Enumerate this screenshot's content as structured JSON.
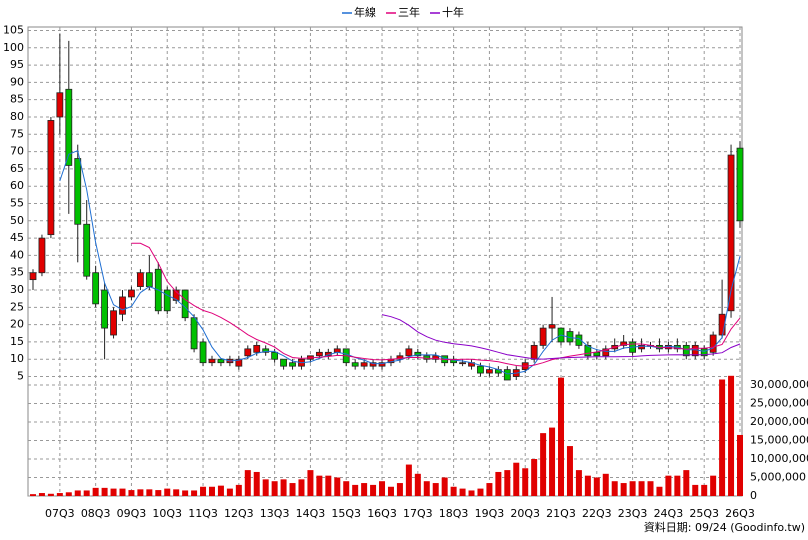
{
  "chart_data": {
    "type": "candlestick",
    "source": "資料日期: 09/24  (Goodinfo.tw)",
    "categories": [
      null,
      null,
      null,
      "07Q3",
      null,
      null,
      null,
      "08Q3",
      null,
      null,
      null,
      "09Q3",
      null,
      null,
      null,
      "10Q3",
      null,
      null,
      null,
      "11Q3",
      null,
      null,
      null,
      "12Q3",
      null,
      null,
      null,
      "13Q3",
      null,
      null,
      null,
      "14Q3",
      null,
      null,
      null,
      "15Q3",
      null,
      null,
      null,
      "16Q3",
      null,
      null,
      null,
      "17Q3",
      null,
      null,
      null,
      "18Q3",
      null,
      null,
      null,
      "19Q3",
      null,
      null,
      null,
      "20Q3",
      null,
      null,
      null,
      "21Q3",
      null,
      null,
      null,
      "22Q3",
      null,
      null,
      null,
      "23Q3",
      null,
      null,
      null,
      "24Q3",
      null,
      null,
      null,
      "25Q3",
      null,
      null,
      null,
      "26Q3"
    ],
    "open": [
      33,
      35,
      46,
      80,
      88,
      68,
      49,
      35,
      30,
      17,
      23,
      28,
      31,
      35,
      36,
      30,
      27,
      30,
      22,
      15,
      9,
      10,
      9,
      8,
      11,
      12,
      13,
      12,
      10,
      9,
      8,
      10,
      11,
      11,
      12,
      13,
      9,
      8,
      8,
      8,
      9,
      10,
      11,
      12,
      11,
      10,
      11,
      10,
      9,
      8,
      8,
      6,
      7,
      7,
      5,
      7,
      10,
      14,
      19,
      19,
      18,
      17,
      14,
      12,
      11,
      13,
      14,
      15,
      13,
      14,
      14,
      13,
      14,
      14,
      11,
      13,
      12,
      17,
      24,
      71
    ],
    "high": [
      36,
      46,
      80,
      104,
      102,
      72,
      56,
      37,
      32,
      25,
      30,
      31,
      36,
      40,
      38,
      31,
      31,
      30,
      23,
      16,
      11,
      10,
      11,
      11,
      14,
      15,
      14,
      13,
      10,
      10,
      11,
      11,
      13,
      13,
      14,
      13,
      10,
      10,
      10,
      10,
      11,
      12,
      14,
      13,
      12,
      12,
      11,
      11,
      10,
      10,
      9,
      8,
      8,
      8,
      8,
      10,
      15,
      20,
      28,
      19,
      19,
      18,
      15,
      13,
      14,
      16,
      17,
      16,
      16,
      15,
      16,
      15,
      16,
      15,
      15,
      14,
      18,
      33,
      72,
      73
    ],
    "low": [
      30,
      34,
      45,
      75,
      52,
      38,
      33,
      25,
      10,
      16,
      21,
      27,
      30,
      30,
      23,
      23,
      26,
      21,
      12,
      8,
      8,
      8,
      8,
      7,
      10,
      11,
      11,
      9,
      7,
      7,
      7,
      9,
      10,
      10,
      11,
      8,
      7,
      7,
      7,
      7,
      8,
      9,
      10,
      10,
      9,
      9,
      8,
      8,
      8,
      7,
      5,
      5,
      5,
      4,
      4,
      6,
      9,
      13,
      15,
      14,
      14,
      13,
      10,
      10,
      10,
      12,
      13,
      11,
      12,
      13,
      12,
      12,
      12,
      10,
      10,
      10,
      11,
      16,
      22,
      48
    ],
    "close": [
      35,
      45,
      79,
      87,
      66,
      49,
      34,
      26,
      19,
      24,
      28,
      30,
      35,
      31,
      24,
      24,
      30,
      22,
      13,
      9,
      10,
      9,
      10,
      10,
      13,
      14,
      12,
      10,
      8,
      8,
      10,
      11,
      12,
      12,
      13,
      9,
      8,
      9,
      9,
      9,
      10,
      11,
      13,
      11,
      10,
      11,
      9,
      9,
      9,
      9,
      6,
      7,
      6,
      4,
      7,
      9,
      14,
      19,
      20,
      15,
      15,
      14,
      11,
      11,
      13,
      14,
      15,
      12,
      14,
      14,
      13,
      14,
      13,
      11,
      14,
      11,
      17,
      23,
      69,
      50
    ],
    "up_color": "#e00000",
    "down_color": "#00c000",
    "series": [
      {
        "name": "年線",
        "color": "#1e6ed2",
        "values": [
          null,
          null,
          null,
          61.5,
          69.25,
          70.25,
          59,
          43.75,
          32,
          25.75,
          24.25,
          25.25,
          29.25,
          31,
          30,
          28.5,
          27.25,
          25,
          22.25,
          18.5,
          13.5,
          10.25,
          9.5,
          9.75,
          10.5,
          11.75,
          12.25,
          12.25,
          11,
          9.5,
          9,
          9.25,
          10.25,
          11.25,
          12,
          11.5,
          10.5,
          9.75,
          8.75,
          8.75,
          9.25,
          9.75,
          10.75,
          11.25,
          11.25,
          11.25,
          10.25,
          9.75,
          9.5,
          9,
          8.25,
          7.75,
          7,
          5.75,
          6,
          6.5,
          8.5,
          12.25,
          15.5,
          17,
          16.25,
          16,
          13.75,
          12.75,
          12.25,
          12.25,
          13.25,
          13.5,
          13.75,
          13.75,
          13.25,
          13.75,
          13.5,
          12.75,
          12.75,
          12.25,
          13.25,
          16.25,
          30,
          39.75
        ]
      },
      {
        "name": "三年",
        "color": "#e0007a",
        "values": [
          null,
          null,
          null,
          null,
          null,
          null,
          null,
          null,
          null,
          null,
          null,
          43.5,
          43.5,
          42.3,
          37.75,
          32.5,
          29.5,
          27.25,
          25.5,
          24.1,
          23.3,
          22.1,
          20.6,
          18.9,
          17.1,
          15.7,
          14.7,
          13.5,
          11.7,
          10.5,
          10.25,
          10.4,
          10.6,
          10.8,
          11.1,
          11,
          10.6,
          10.2,
          9.9,
          9.8,
          10,
          10.25,
          10.5,
          10.5,
          10.3,
          10.25,
          9.9,
          9.9,
          10,
          10,
          9.75,
          9.6,
          9.25,
          8.7,
          8.2,
          8,
          8.3,
          9,
          9.9,
          10.4,
          10.9,
          11.3,
          11.75,
          12.1,
          12.7,
          13.5,
          14.2,
          14.4,
          14.4,
          14,
          13.4,
          13.3,
          13.2,
          12.9,
          13.2,
          13.2,
          13.5,
          14.25,
          18.75,
          21.9
        ]
      },
      {
        "name": "十年",
        "color": "#8a00c8",
        "values": [
          null,
          null,
          null,
          null,
          null,
          null,
          null,
          null,
          null,
          null,
          null,
          null,
          null,
          null,
          null,
          null,
          null,
          null,
          null,
          null,
          null,
          null,
          null,
          null,
          null,
          null,
          null,
          null,
          null,
          null,
          null,
          null,
          null,
          null,
          null,
          null,
          null,
          null,
          null,
          22.9,
          22.3,
          21.4,
          19.8,
          17.9,
          16.5,
          15.5,
          14.9,
          14.5,
          14.2,
          13.85,
          13.3,
          12.7,
          12,
          11.3,
          10.9,
          10.5,
          10.1,
          10.05,
          10.2,
          10.4,
          10.5,
          10.6,
          10.65,
          10.7,
          10.7,
          10.7,
          10.75,
          10.8,
          10.95,
          11.1,
          11.2,
          11.25,
          11.3,
          11.25,
          11.3,
          11.3,
          11.55,
          11.9,
          13.4,
          14.4
        ]
      }
    ],
    "volume": {
      "axis": "y2",
      "color": "#e00000",
      "values": [
        500000,
        800000,
        600000,
        800000,
        1000000,
        1500000,
        1500000,
        2200000,
        2200000,
        2000000,
        2000000,
        1600000,
        1800000,
        1800000,
        1600000,
        2000000,
        1800000,
        1500000,
        1500000,
        2500000,
        2500000,
        2800000,
        2000000,
        3000000,
        7000000,
        6500000,
        4500000,
        4000000,
        4500000,
        3500000,
        4500000,
        7000000,
        5500000,
        5500000,
        5000000,
        4000000,
        3000000,
        3500000,
        3000000,
        4000000,
        2500000,
        3500000,
        8500000,
        6000000,
        4000000,
        3500000,
        5000000,
        2500000,
        2000000,
        1500000,
        2000000,
        3500000,
        6500000,
        7000000,
        9000000,
        7500000,
        10000000,
        17000000,
        18500000,
        32000000,
        13500000,
        7000000,
        5500000,
        5000000,
        6000000,
        4000000,
        3500000,
        4000000,
        4000000,
        4000000,
        2500000,
        5500000,
        5500000,
        7000000,
        3000000,
        3000000,
        5500000,
        31500000,
        32500000,
        16500000
      ]
    },
    "ylim": [
      4,
      106
    ],
    "yticks": [
      5,
      10,
      15,
      20,
      25,
      30,
      35,
      40,
      45,
      50,
      55,
      60,
      65,
      70,
      75,
      80,
      85,
      90,
      95,
      100,
      105
    ],
    "y2lim": [
      0,
      31500000
    ],
    "y2ticks": [
      {
        "value": 0,
        "label": "0"
      },
      {
        "value": 5000000,
        "label": "5,000,000"
      },
      {
        "value": 10000000,
        "label": "10,000,000"
      },
      {
        "value": 15000000,
        "label": "15,000,000"
      },
      {
        "value": 20000000,
        "label": "20,000,000"
      },
      {
        "value": 25000000,
        "label": "25,000,000"
      },
      {
        "value": 30000000,
        "label": "30,000,000"
      }
    ],
    "grid": true,
    "legend": "top"
  }
}
